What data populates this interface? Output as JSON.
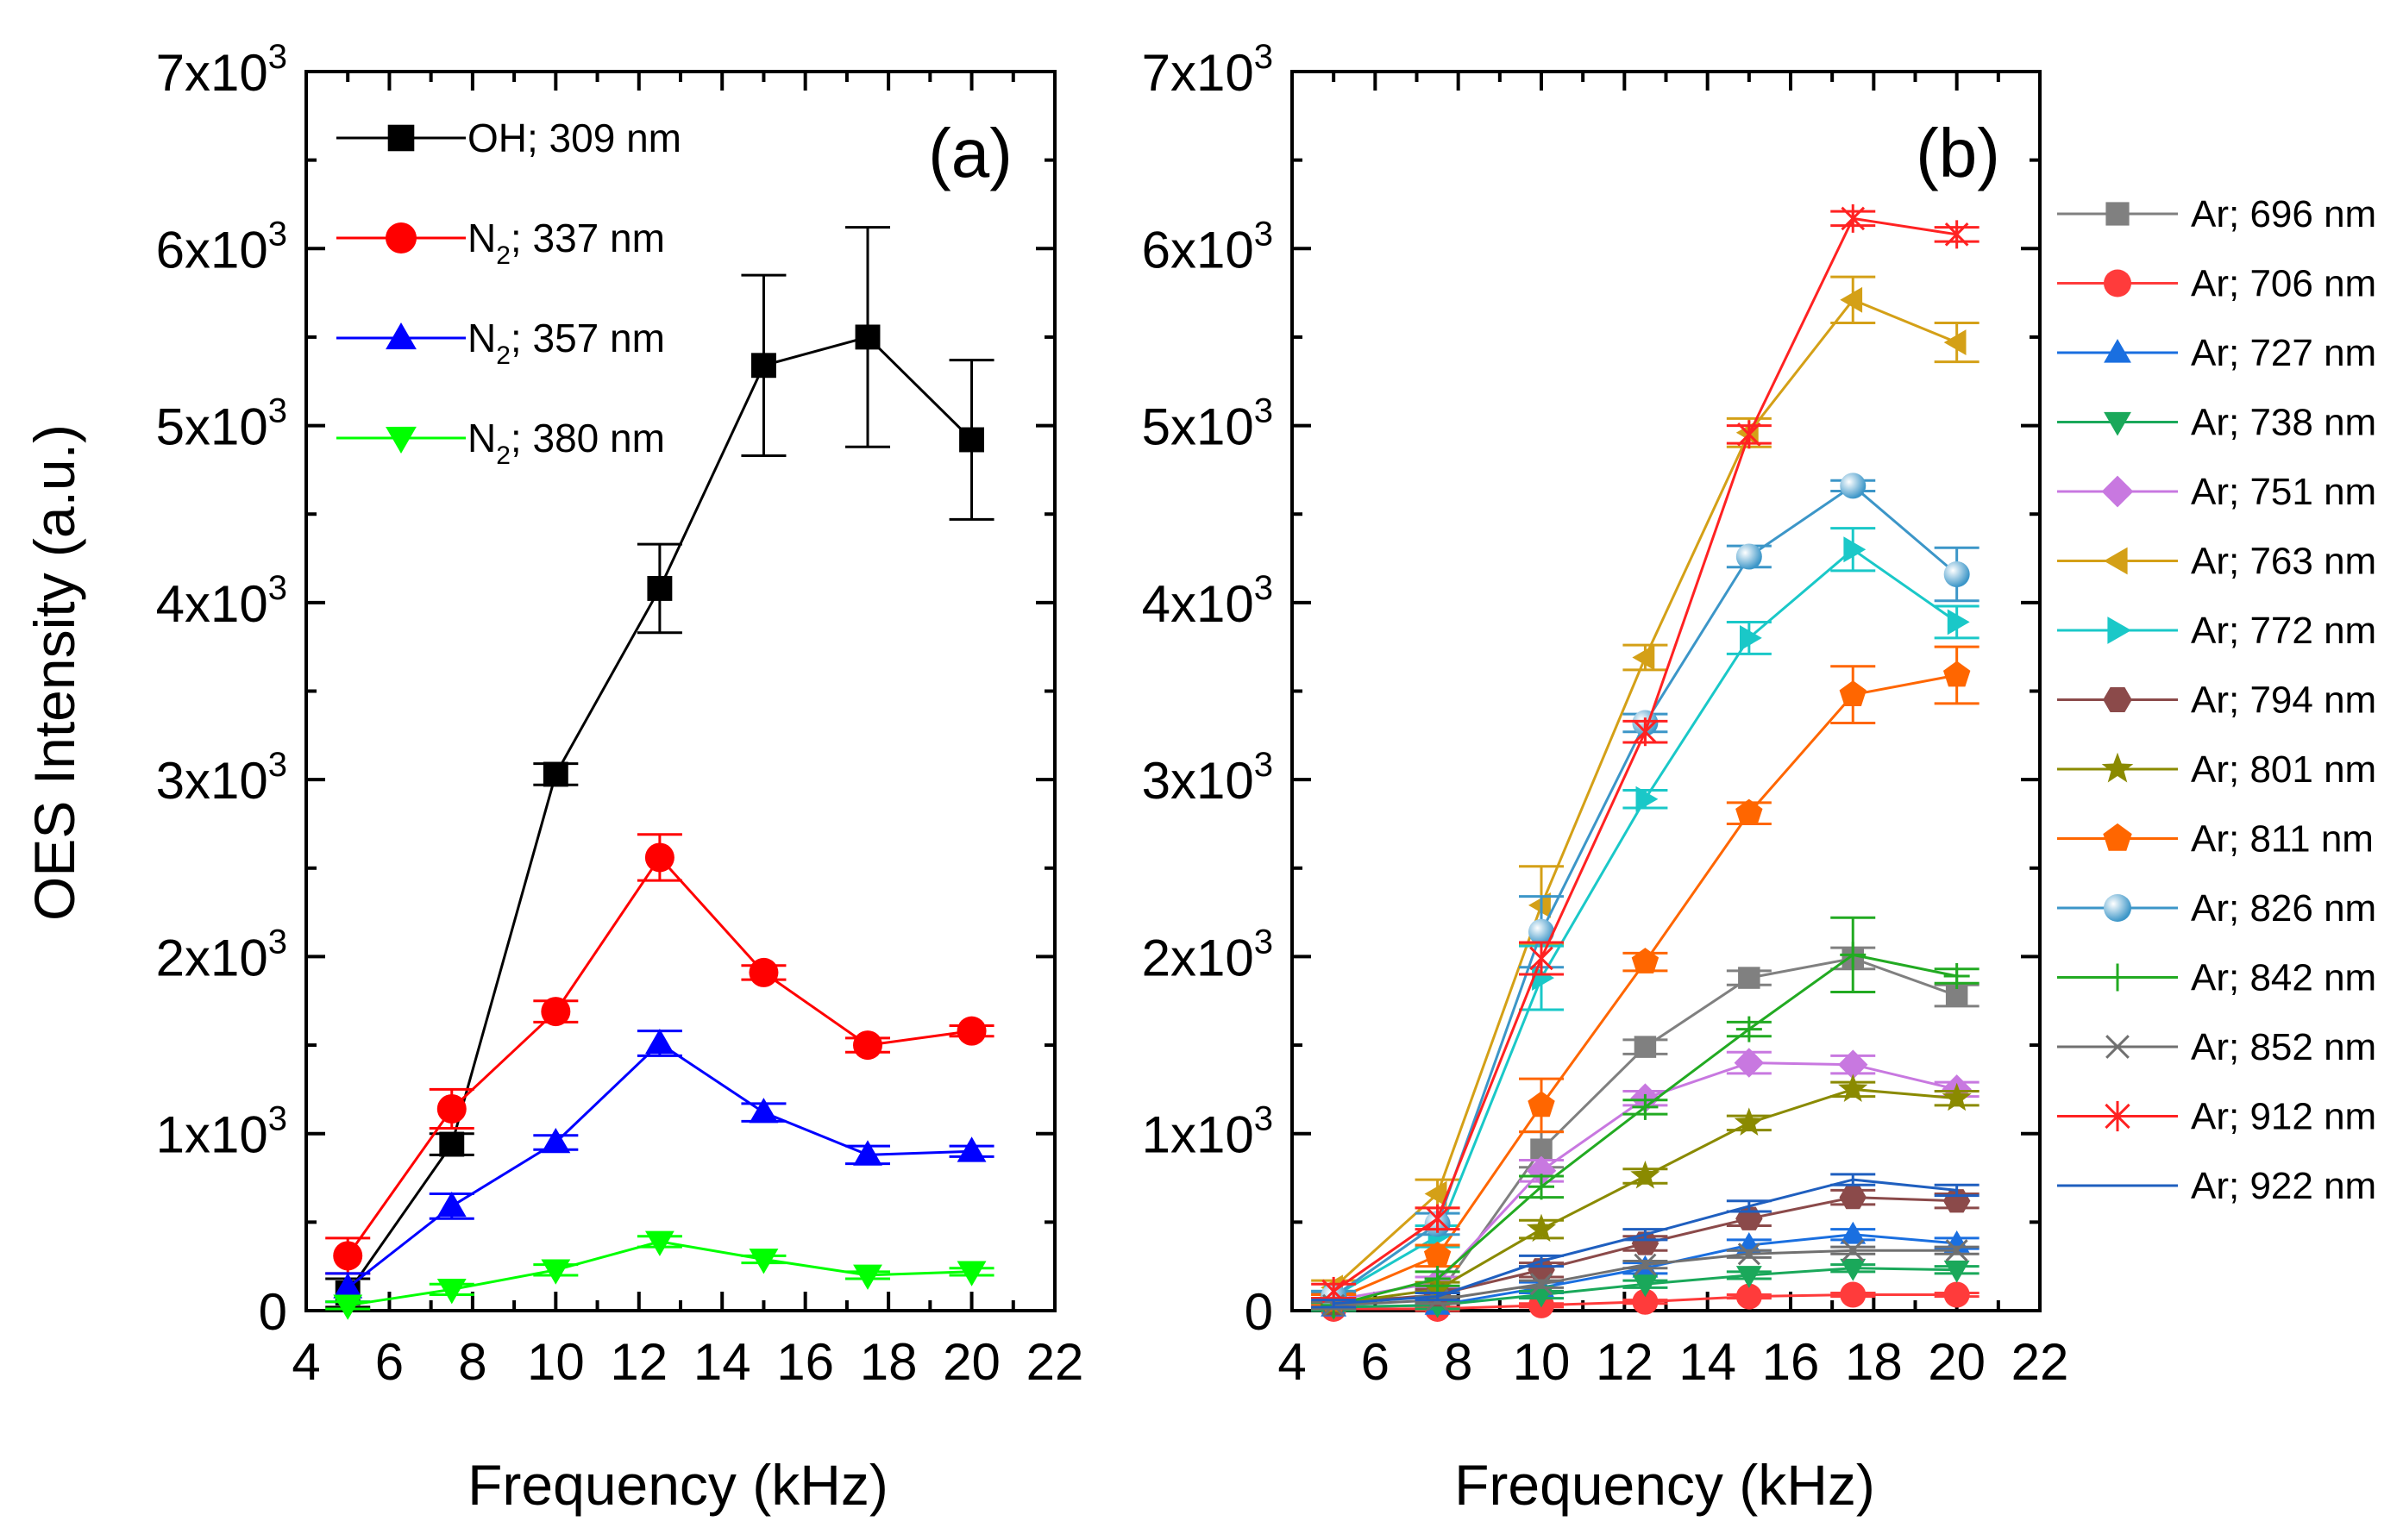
{
  "chart_data": [
    {
      "panel": "(a)",
      "type": "line",
      "xlabel": "Frequency (kHz)",
      "ylabel": "OES Intensity (a.u.)",
      "xlim": [
        4,
        22
      ],
      "ylim": [
        0,
        7000
      ],
      "xticks": [
        "4",
        "6",
        "8",
        "10",
        "12",
        "14",
        "16",
        "18",
        "20",
        "22"
      ],
      "yticks": [
        {
          "base": "0",
          "exp": ""
        },
        {
          "base": "1x10",
          "exp": "3"
        },
        {
          "base": "2x10",
          "exp": "3"
        },
        {
          "base": "3x10",
          "exp": "3"
        },
        {
          "base": "4x10",
          "exp": "3"
        },
        {
          "base": "5x10",
          "exp": "3"
        },
        {
          "base": "6x10",
          "exp": "3"
        },
        {
          "base": "7x10",
          "exp": "3"
        }
      ],
      "legend_position": "top-left",
      "x": [
        5,
        7.5,
        10,
        12.5,
        15,
        17.5,
        20
      ],
      "series": [
        {
          "name": "OH; 309 nm",
          "label": "OH; 309 nm",
          "sub": "",
          "rest": "",
          "color": "#000000",
          "marker": "square",
          "values": [
            100,
            940,
            3030,
            4080,
            5340,
            5500,
            4920
          ],
          "errors": [
            80,
            60,
            60,
            250,
            510,
            620,
            450
          ]
        },
        {
          "name": "N2; 337 nm",
          "label": "N",
          "sub": "2",
          "rest": "; 337 nm",
          "color": "#ff0000",
          "marker": "circle",
          "values": [
            310,
            1140,
            1690,
            2560,
            1910,
            1500,
            1580
          ],
          "errors": [
            100,
            110,
            60,
            130,
            40,
            40,
            30
          ]
        },
        {
          "name": "N2; 357 nm",
          "label": "N",
          "sub": "2",
          "rest": "; 357 nm",
          "color": "#0000ff",
          "marker": "triangle-up",
          "values": [
            130,
            590,
            950,
            1510,
            1120,
            880,
            900
          ],
          "errors": [
            80,
            70,
            40,
            70,
            50,
            50,
            30
          ]
        },
        {
          "name": "N2; 380 nm",
          "label": "N",
          "sub": "2",
          "rest": "; 380 nm",
          "color": "#00ff00",
          "marker": "triangle-down",
          "values": [
            30,
            120,
            230,
            390,
            290,
            200,
            220
          ],
          "errors": [
            20,
            30,
            30,
            30,
            20,
            20,
            20
          ]
        }
      ]
    },
    {
      "panel": "(b)",
      "type": "line",
      "xlabel": "Frequency (kHz)",
      "ylabel": "",
      "xlim": [
        4,
        22
      ],
      "ylim": [
        0,
        7000
      ],
      "xticks": [
        "4",
        "6",
        "8",
        "10",
        "12",
        "14",
        "16",
        "18",
        "20",
        "22"
      ],
      "yticks": [
        {
          "base": "0",
          "exp": ""
        },
        {
          "base": "1x10",
          "exp": "3"
        },
        {
          "base": "2x10",
          "exp": "3"
        },
        {
          "base": "3x10",
          "exp": "3"
        },
        {
          "base": "4x10",
          "exp": "3"
        },
        {
          "base": "5x10",
          "exp": "3"
        },
        {
          "base": "6x10",
          "exp": "3"
        },
        {
          "base": "7x10",
          "exp": "3"
        }
      ],
      "legend_position": "outside-right",
      "x": [
        5,
        7.5,
        10,
        12.5,
        15,
        17.5,
        20
      ],
      "series": [
        {
          "name": "Ar; 696 nm",
          "color": "#808080",
          "marker": "square",
          "values": [
            60,
            80,
            910,
            1490,
            1880,
            1990,
            1780
          ],
          "errors": [
            40,
            30,
            100,
            40,
            40,
            60,
            60
          ]
        },
        {
          "name": "Ar; 706 nm",
          "color": "#ff3b3b",
          "marker": "circle",
          "values": [
            10,
            10,
            30,
            50,
            80,
            90,
            90
          ],
          "errors": [
            10,
            10,
            10,
            10,
            10,
            10,
            10
          ]
        },
        {
          "name": "Ar; 727 nm",
          "color": "#1a6fe0",
          "marker": "triangle-up",
          "values": [
            20,
            30,
            130,
            240,
            370,
            430,
            380
          ],
          "errors": [
            20,
            20,
            30,
            30,
            30,
            30,
            30
          ]
        },
        {
          "name": "Ar; 738 nm",
          "color": "#1aa85a",
          "marker": "triangle-down",
          "values": [
            20,
            30,
            90,
            150,
            200,
            240,
            230
          ],
          "errors": [
            20,
            20,
            20,
            20,
            20,
            20,
            20
          ]
        },
        {
          "name": "Ar; 751 nm",
          "color": "#c878e0",
          "marker": "diamond",
          "values": [
            60,
            160,
            790,
            1200,
            1400,
            1390,
            1250
          ],
          "errors": [
            30,
            30,
            60,
            40,
            60,
            50,
            40
          ]
        },
        {
          "name": "Ar; 763 nm",
          "color": "#d4a017",
          "marker": "triangle-left",
          "values": [
            130,
            660,
            2290,
            3690,
            4960,
            5710,
            5470
          ],
          "errors": [
            40,
            80,
            220,
            70,
            80,
            130,
            110
          ]
        },
        {
          "name": "Ar; 772 nm",
          "color": "#1ac8c8",
          "marker": "triangle-right",
          "values": [
            80,
            420,
            1880,
            2890,
            3800,
            4300,
            3890
          ],
          "errors": [
            30,
            60,
            180,
            50,
            90,
            120,
            90
          ]
        },
        {
          "name": "Ar; 794 nm",
          "color": "#8b4a4a",
          "marker": "hexagon",
          "values": [
            40,
            90,
            230,
            380,
            520,
            640,
            620
          ],
          "errors": [
            30,
            30,
            40,
            40,
            40,
            40,
            40
          ]
        },
        {
          "name": "Ar; 801 nm",
          "color": "#8a8a00",
          "marker": "star",
          "values": [
            40,
            120,
            460,
            760,
            1060,
            1250,
            1200
          ],
          "errors": [
            30,
            40,
            50,
            40,
            40,
            40,
            40
          ]
        },
        {
          "name": "Ar; 811 nm",
          "color": "#ff6600",
          "marker": "pentagon",
          "values": [
            60,
            310,
            1160,
            1970,
            2810,
            3480,
            3590
          ],
          "errors": [
            30,
            60,
            150,
            50,
            60,
            160,
            160
          ]
        },
        {
          "name": "Ar; 826 nm",
          "color": "#3c96c8",
          "marker": "sphere",
          "values": [
            80,
            490,
            2140,
            3320,
            4260,
            4660,
            4160
          ],
          "errors": [
            30,
            60,
            200,
            50,
            60,
            30,
            150
          ]
        },
        {
          "name": "Ar; 842 nm",
          "color": "#22aa22",
          "marker": "plus",
          "values": [
            30,
            180,
            700,
            1150,
            1590,
            2010,
            1890
          ],
          "errors": [
            20,
            40,
            60,
            40,
            40,
            210,
            40
          ]
        },
        {
          "name": "Ar; 852 nm",
          "color": "#707070",
          "marker": "cross",
          "values": [
            30,
            60,
            150,
            260,
            320,
            340,
            340
          ],
          "errors": [
            20,
            20,
            20,
            20,
            20,
            20,
            20
          ]
        },
        {
          "name": "Ar; 912 nm",
          "color": "#ff2222",
          "marker": "asterisk",
          "values": [
            110,
            520,
            1990,
            3270,
            4950,
            6170,
            6080
          ],
          "errors": [
            40,
            60,
            90,
            60,
            50,
            40,
            40
          ]
        },
        {
          "name": "Ar; 922 nm",
          "color": "#1f5fbf",
          "marker": "none",
          "values": [
            40,
            80,
            280,
            430,
            590,
            740,
            680
          ],
          "errors": [
            20,
            20,
            30,
            30,
            30,
            30,
            30
          ]
        }
      ]
    }
  ]
}
